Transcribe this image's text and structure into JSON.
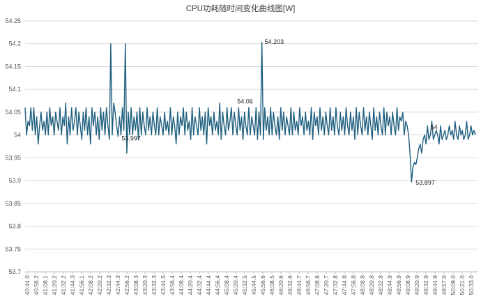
{
  "chart_data": {
    "type": "line",
    "title": "CPU功耗随时间变化曲线图[W]",
    "xlabel": "",
    "ylabel": "",
    "ylim": [
      53.7,
      54.25
    ],
    "yticks": [
      53.7,
      53.75,
      53.8,
      53.85,
      53.9,
      53.95,
      54,
      54.05,
      54.1,
      54.15,
      54.2,
      54.25
    ],
    "ytick_labels": [
      "53.7",
      "53.75",
      "53.8",
      "53.85",
      "53.9",
      "53.95",
      "54",
      "54.05",
      "54.1",
      "54.15",
      "54.2",
      "54.25"
    ],
    "xtick_labels": [
      "40:44.0",
      "40:56.2",
      "41:08.1",
      "41:20.2",
      "41:32.2",
      "41:44.3",
      "41:56.1",
      "42:08.2",
      "42:20.2",
      "42:32.3",
      "42:44.3",
      "42:56.2",
      "43:08.3",
      "43:20.3",
      "43:32.3",
      "43:44.5",
      "43:56.4",
      "44:08.4",
      "44:20.4",
      "44:32.4",
      "44:44.4",
      "44:56.4",
      "45:08.4",
      "45:20.4",
      "45:32.5",
      "45:44.5",
      "45:56.6",
      "46:08.5",
      "46:20.6",
      "46:32.6",
      "46:44.7",
      "46:56.7",
      "47:08.8",
      "47:20.7",
      "47:32.8",
      "47:44.8",
      "47:56.8",
      "48:08.8",
      "48:20.8",
      "48:32.8",
      "48:44.9",
      "48:56.9",
      "49:08.9",
      "49:20.9",
      "49:32.9",
      "49:44.9",
      "49:57.0",
      "50:09.0",
      "50:21.0",
      "50:33.0"
    ],
    "series_color": "#1f5f7f",
    "grid": true,
    "legend": "none",
    "annotations": [
      "54.203",
      "53.897",
      "53.997",
      "54.06",
      "54"
    ],
    "series": [
      {
        "values": [
          54.06,
          54.0,
          54.03,
          54.02,
          54.06,
          54.01,
          54.06,
          54.0,
          54.04,
          53.98,
          54.02,
          54.05,
          54.01,
          54.03,
          54.0,
          54.05,
          54.0,
          54.06,
          54.02,
          54.04,
          54.0,
          54.05,
          54.03,
          54.01,
          54.06,
          54.0,
          54.04,
          54.02,
          54.07,
          53.98,
          54.04,
          54.0,
          54.06,
          54.01,
          54.03,
          54.06,
          54.0,
          54.05,
          54.02,
          53.99,
          54.05,
          54.01,
          54.06,
          54.0,
          54.04,
          53.98,
          54.06,
          54.02,
          54.05,
          54.0,
          54.04,
          53.99,
          54.06,
          54.01,
          54.05,
          54.0,
          54.06,
          54.02,
          53.99,
          54.2,
          54.0,
          54.07,
          54.05,
          54.02,
          53.997,
          54.04,
          54.0,
          54.06,
          54.01,
          54.2,
          53.96,
          54.05,
          54.0,
          54.06,
          54.0,
          54.04,
          54.01,
          54.05,
          53.99,
          54.06,
          54.0,
          54.05,
          54.02,
          54.0,
          54.06,
          54.01,
          54.04,
          54.0,
          54.05,
          54.02,
          54.0,
          54.06,
          54.0,
          54.04,
          54.02,
          54.0,
          54.05,
          54.01,
          54.03,
          54.0,
          54.06,
          54.0,
          54.04,
          54.02,
          53.98,
          54.05,
          54.0,
          54.04,
          54.02,
          54.06,
          54.0,
          54.05,
          54.01,
          54.03,
          53.99,
          54.06,
          54.0,
          54.04,
          54.02,
          54.0,
          54.06,
          54.01,
          54.04,
          54.0,
          54.05,
          53.98,
          54.06,
          54.02,
          54.04,
          54.0,
          54.05,
          54.01,
          54.03,
          54.0,
          54.07,
          53.99,
          54.05,
          54.02,
          54.0,
          54.06,
          54.01,
          54.03,
          54.06,
          54.0,
          54.05,
          54.02,
          54.0,
          54.06,
          54.01,
          54.04,
          53.99,
          54.05,
          54.02,
          54.0,
          54.06,
          54.0,
          54.04,
          54.02,
          54.0,
          54.06,
          53.99,
          54.05,
          54.0,
          54.203,
          53.99,
          54.06,
          54.01,
          54.04,
          54.0,
          54.06,
          54.0,
          54.05,
          54.02,
          54.0,
          54.04,
          53.99,
          54.06,
          54.01,
          54.05,
          54.0,
          54.04,
          54.02,
          54.0,
          54.06,
          54.0,
          54.05,
          54.01,
          54.03,
          54.0,
          54.06,
          54.02,
          54.04,
          54.0,
          54.05,
          54.01,
          54.03,
          54.0,
          54.06,
          53.99,
          54.05,
          54.02,
          54.04,
          54.0,
          54.06,
          54.01,
          54.04,
          54.0,
          54.05,
          54.02,
          54.0,
          54.06,
          54.01,
          54.04,
          54.0,
          54.06,
          54.02,
          54.0,
          54.05,
          54.01,
          54.04,
          54.0,
          54.06,
          54.02,
          54.0,
          54.05,
          54.01,
          54.04,
          53.99,
          54.06,
          54.0,
          54.05,
          54.02,
          54.0,
          54.06,
          54.01,
          54.04,
          54.0,
          54.05,
          54.02,
          53.99,
          54.06,
          54.01,
          54.04,
          54.0,
          54.05,
          54.02,
          54.0,
          54.06,
          54.0,
          54.05,
          54.02,
          54.04,
          54.0,
          54.05,
          54.02,
          54.0,
          54.06,
          54.01,
          54.04,
          54.03,
          54.05,
          54.0,
          54.03,
          54.02,
          54.0,
          53.96,
          53.897,
          53.93,
          53.94,
          53.935,
          53.95,
          53.97,
          53.98,
          53.96,
          53.99,
          54.0,
          53.98,
          54.02,
          53.99,
          54.0,
          54.03,
          53.99,
          54.0,
          54.01,
          54.0,
          53.98,
          54.02,
          53.99,
          54.0,
          54.01,
          53.99,
          54.0,
          54.02,
          54.0,
          54.01,
          53.99,
          54.03,
          54.0,
          53.99,
          54.02,
          54.0,
          54.01,
          53.99,
          54.0,
          54.03,
          53.99,
          54.0,
          54.02,
          54.0,
          54.01,
          54.0
        ]
      }
    ]
  }
}
